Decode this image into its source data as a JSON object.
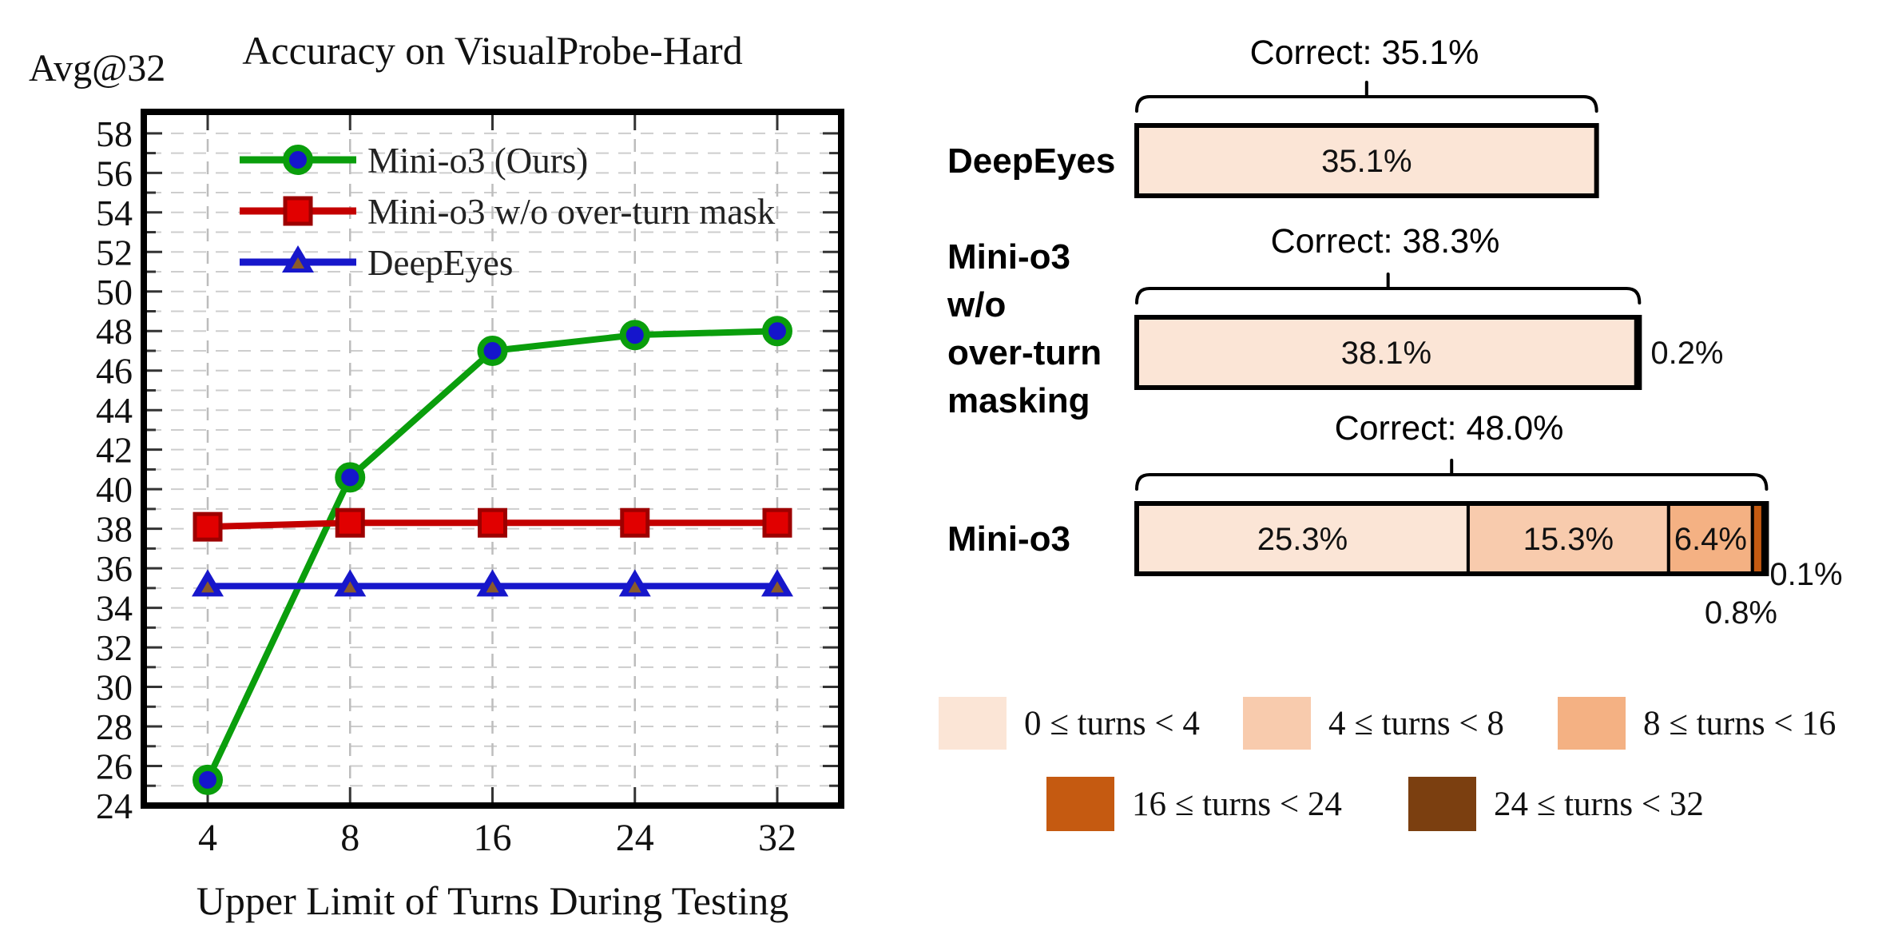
{
  "figure": {
    "left_chart": {
      "unit_label": "Avg@32",
      "title": "Accuracy on VisualProbe-Hard",
      "xlabel": "Upper Limit of Turns During Testing"
    },
    "right_panel": {
      "rows": [
        {
          "label": "DeepEyes",
          "correct_label": "Correct: 35.1%"
        },
        {
          "label": "Mini-o3\nw/o\nover-turn\nmasking",
          "correct_label": "Correct: 38.3%"
        },
        {
          "label": "Mini-o3",
          "correct_label": "Correct: 48.0%"
        }
      ]
    },
    "legend": {
      "items": [
        {
          "label": "0 ≤ turns < 4",
          "color": "#fbe5d6"
        },
        {
          "label": "4 ≤ turns < 8",
          "color": "#f8cbad"
        },
        {
          "label": "8 ≤ turns < 16",
          "color": "#f4b183"
        },
        {
          "label": "16 ≤ turns < 24",
          "color": "#c55a11"
        },
        {
          "label": "24 ≤ turns < 32",
          "color": "#7b3f10"
        }
      ]
    }
  },
  "chart_data": [
    {
      "type": "line",
      "title": "Accuracy on VisualProbe-Hard",
      "ylabel": "Avg@32",
      "xlabel": "Upper Limit of Turns During Testing",
      "x_tick_labels": [
        "4",
        "8",
        "16",
        "24",
        "32"
      ],
      "ylim": [
        24,
        58
      ],
      "ytick_step": 2,
      "grid": true,
      "legend_position": "upper left",
      "series": [
        {
          "name": "Mini-o3 (Ours)",
          "color": "#0a9e0c",
          "marker": "circle",
          "marker_fill": "#1515cc",
          "values": [
            25.3,
            40.6,
            47.0,
            47.8,
            48.0
          ]
        },
        {
          "name": "Mini-o3 w/o over-turn mask",
          "color": "#c40000",
          "marker": "square",
          "marker_fill": "#e10000",
          "values": [
            38.1,
            38.3,
            38.3,
            38.3,
            38.3
          ]
        },
        {
          "name": "DeepEyes",
          "color": "#1717cb",
          "marker": "triangle",
          "marker_fill": "#8a5a2b",
          "values": [
            35.1,
            35.1,
            35.1,
            35.1,
            35.1
          ]
        }
      ]
    },
    {
      "type": "bar",
      "orientation": "horizontal-stacked",
      "unit": "% of rollouts by number of turns used",
      "categories": [
        "DeepEyes",
        "Mini-o3 w/o over-turn masking",
        "Mini-o3"
      ],
      "correct_totals": [
        35.1,
        38.3,
        48.0
      ],
      "bins": [
        "0 ≤ turns < 4",
        "4 ≤ turns < 8",
        "8 ≤ turns < 16",
        "16 ≤ turns < 24",
        "24 ≤ turns < 32"
      ],
      "bin_colors": [
        "#fbe5d6",
        "#f8cbad",
        "#f4b183",
        "#c55a11",
        "#7b3f10"
      ],
      "values": [
        [
          35.1,
          0,
          0,
          0,
          0
        ],
        [
          38.1,
          0.2,
          0,
          0,
          0
        ],
        [
          25.3,
          15.3,
          6.4,
          0.8,
          0.1
        ]
      ],
      "segment_labels": [
        [
          "35.1%"
        ],
        [
          "38.1%",
          "0.2%"
        ],
        [
          "25.3%",
          "15.3%",
          "6.4%",
          "0.8%",
          "0.1%"
        ]
      ],
      "label_placements": [
        [
          "inside"
        ],
        [
          "inside",
          "right"
        ],
        [
          "inside",
          "inside",
          "inside",
          "below",
          "corner"
        ]
      ]
    }
  ]
}
